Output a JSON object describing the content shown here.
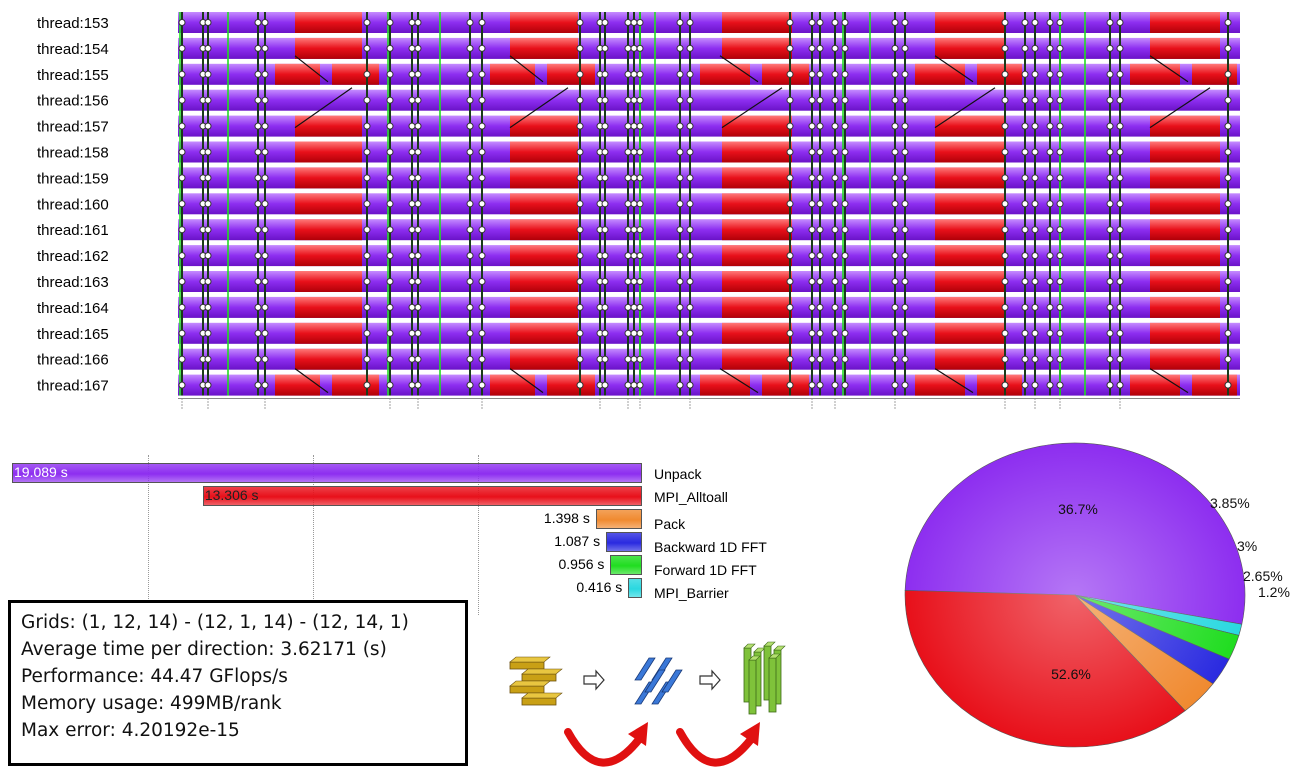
{
  "timeline": {
    "threads": [
      "thread:153",
      "thread:154",
      "thread:155",
      "thread:156",
      "thread:157",
      "thread:158",
      "thread:159",
      "thread:160",
      "thread:161",
      "thread:162",
      "thread:163",
      "thread:164",
      "thread:165",
      "thread:166",
      "thread:167"
    ],
    "colors": {
      "compute": "#8d2ef0",
      "alltoall": "#e8101a",
      "boundary": "#0c8a3c",
      "green_marker": "#22dd22"
    }
  },
  "chart_data": [
    {
      "type": "bar",
      "orientation": "horizontal",
      "categories": [
        "Unpack",
        "MPI_Alltoall",
        "Pack",
        "Backward 1D FFT",
        "Forward 1D FFT",
        "MPI_Barrier"
      ],
      "values": [
        19.089,
        13.306,
        1.398,
        1.087,
        0.956,
        0.416
      ],
      "value_labels": [
        "19.089 s",
        "13.306 s",
        "1.398 s",
        "1.087 s",
        "0.956 s",
        "0.416 s"
      ],
      "colors": [
        "#8d2ef0",
        "#e8101a",
        "#f08a30",
        "#2a2ae0",
        "#20dd20",
        "#2ad8e0"
      ],
      "xlim": [
        0,
        19.089
      ],
      "grid": true,
      "legend": "right"
    },
    {
      "type": "pie",
      "categories": [
        "Unpack",
        "MPI_Alltoall",
        "Pack",
        "Backward 1D FFT",
        "Forward 1D FFT",
        "MPI_Barrier"
      ],
      "values": [
        52.6,
        36.7,
        3.85,
        3,
        2.65,
        1.2
      ],
      "labels": [
        "52.6%",
        "36.7%",
        "3.85%",
        "3%",
        "2.65%",
        "1.2%"
      ],
      "colors": [
        "#8d2ef0",
        "#e8101a",
        "#f08a30",
        "#2a2ae0",
        "#20dd20",
        "#2ad8e0"
      ]
    }
  ],
  "info": {
    "grids": "Grids: (1, 12, 14)  -  (12, 1, 14)  - (12, 14, 1)",
    "avg_time": "Average time per direction: 3.62171 (s)",
    "performance": "Performance:  44.47 GFlops/s",
    "memory": "Memory usage: 499MB/rank",
    "max_error": "Max error:    4.20192e-15"
  },
  "decomposition": {
    "colors": {
      "x_pencils": "#c9a015",
      "y_pencils": "#3a78d8",
      "z_pencils": "#7fc23a",
      "arrow": "#e01010"
    }
  }
}
